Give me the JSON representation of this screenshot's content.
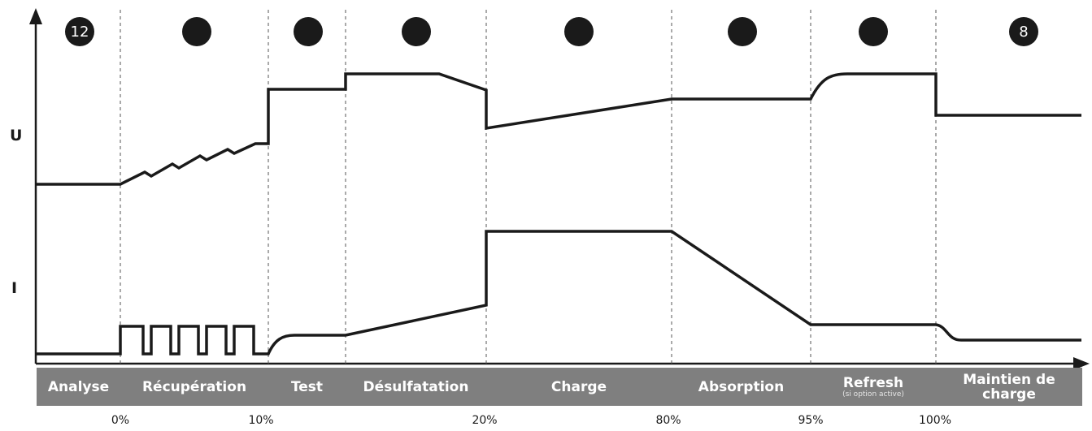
{
  "axis": {
    "u_label": "U",
    "i_label": "I"
  },
  "markers": [
    {
      "label": "12"
    },
    {
      "label": ""
    },
    {
      "label": ""
    },
    {
      "label": ""
    },
    {
      "label": ""
    },
    {
      "label": ""
    },
    {
      "label": ""
    },
    {
      "label": "8"
    }
  ],
  "phases": [
    {
      "label": "Analyse",
      "sub": ""
    },
    {
      "label": "Récupération",
      "sub": ""
    },
    {
      "label": "Test",
      "sub": ""
    },
    {
      "label": "Désulfatation",
      "sub": ""
    },
    {
      "label": "Charge",
      "sub": ""
    },
    {
      "label": "Absorption",
      "sub": ""
    },
    {
      "label": "Refresh",
      "sub": "(si option active)"
    },
    {
      "label": "Maintien de charge",
      "sub": ""
    }
  ],
  "percent_labels": [
    "0%",
    "10%",
    "20%",
    "80%",
    "95%",
    "100%"
  ],
  "colors": {
    "line": "#1a1a1a",
    "bar": "#7f7f7f",
    "bar_text": "#ffffff"
  }
}
